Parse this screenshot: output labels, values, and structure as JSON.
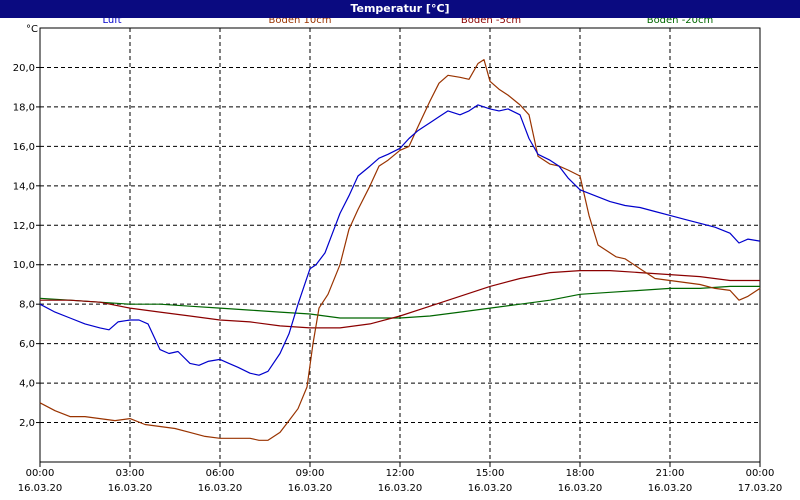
{
  "window": {
    "title": "Temperatur [°C]"
  },
  "chart_data": {
    "type": "line",
    "ylabel": "°C",
    "ylim": [
      0,
      22
    ],
    "xlim": [
      0,
      24
    ],
    "grid": true,
    "legend_placement": "top",
    "yticks": [
      {
        "v": 2,
        "label": "2,0"
      },
      {
        "v": 4,
        "label": "4,0"
      },
      {
        "v": 6,
        "label": "6,0"
      },
      {
        "v": 8,
        "label": "8,0"
      },
      {
        "v": 10,
        "label": "10,0"
      },
      {
        "v": 12,
        "label": "12,0"
      },
      {
        "v": 14,
        "label": "14,0"
      },
      {
        "v": 16,
        "label": "16,0"
      },
      {
        "v": 18,
        "label": "18,0"
      },
      {
        "v": 20,
        "label": "20,0"
      }
    ],
    "xticks": [
      {
        "v": 0,
        "time": "00:00",
        "date": "16.03.20"
      },
      {
        "v": 3,
        "time": "03:00",
        "date": "16.03.20"
      },
      {
        "v": 6,
        "time": "06:00",
        "date": "16.03.20"
      },
      {
        "v": 9,
        "time": "09:00",
        "date": "16.03.20"
      },
      {
        "v": 12,
        "time": "12:00",
        "date": "16.03.20"
      },
      {
        "v": 15,
        "time": "15:00",
        "date": "16.03.20"
      },
      {
        "v": 18,
        "time": "18:00",
        "date": "16.03.20"
      },
      {
        "v": 21,
        "time": "21:00",
        "date": "16.03.20"
      },
      {
        "v": 24,
        "time": "00:00",
        "date": "17.03.20"
      }
    ],
    "series": [
      {
        "name": "Luft",
        "color": "#0000cc",
        "x": [
          0,
          0.5,
          1,
          1.5,
          2,
          2.3,
          2.6,
          3,
          3.3,
          3.6,
          4,
          4.3,
          4.6,
          5,
          5.3,
          5.6,
          6,
          6.3,
          6.6,
          7,
          7.3,
          7.6,
          8,
          8.3,
          8.6,
          9,
          9.2,
          9.5,
          9.8,
          10,
          10.3,
          10.6,
          11,
          11.3,
          11.6,
          12,
          12.3,
          12.6,
          13,
          13.3,
          13.6,
          14,
          14.3,
          14.6,
          15,
          15.3,
          15.6,
          16,
          16.3,
          16.6,
          17,
          17.3,
          17.6,
          18,
          18.5,
          19,
          19.5,
          20,
          20.5,
          21,
          21.5,
          22,
          22.5,
          23,
          23.3,
          23.6,
          24
        ],
        "y": [
          8.0,
          7.6,
          7.3,
          7.0,
          6.8,
          6.7,
          7.1,
          7.2,
          7.2,
          7.0,
          5.7,
          5.5,
          5.6,
          5.0,
          4.9,
          5.1,
          5.2,
          5.0,
          4.8,
          4.5,
          4.4,
          4.6,
          5.5,
          6.5,
          8.0,
          9.8,
          10.0,
          10.6,
          11.8,
          12.6,
          13.5,
          14.5,
          15.0,
          15.4,
          15.6,
          15.9,
          16.4,
          16.8,
          17.2,
          17.5,
          17.8,
          17.6,
          17.8,
          18.1,
          17.9,
          17.8,
          17.9,
          17.6,
          16.4,
          15.6,
          15.3,
          15.0,
          14.4,
          13.8,
          13.5,
          13.2,
          13.0,
          12.9,
          12.7,
          12.5,
          12.3,
          12.1,
          11.9,
          11.6,
          11.1,
          11.3,
          11.2
        ]
      },
      {
        "name": "Boden 10cm",
        "color": "#993300",
        "x": [
          0,
          0.5,
          1,
          1.5,
          2,
          2.5,
          3,
          3.5,
          4,
          4.5,
          5,
          5.5,
          6,
          6.5,
          7,
          7.3,
          7.6,
          8,
          8.3,
          8.6,
          8.9,
          9.1,
          9.3,
          9.6,
          10,
          10.3,
          10.6,
          11,
          11.3,
          11.6,
          12,
          12.3,
          12.6,
          13,
          13.3,
          13.6,
          14,
          14.3,
          14.6,
          14.8,
          15,
          15.3,
          15.6,
          16,
          16.3,
          16.6,
          17,
          17.3,
          17.6,
          18,
          18.3,
          18.6,
          18.9,
          19.2,
          19.5,
          20,
          20.5,
          21,
          21.5,
          22,
          22.5,
          23,
          23.3,
          23.6,
          24
        ],
        "y": [
          3.0,
          2.6,
          2.3,
          2.3,
          2.2,
          2.1,
          2.2,
          1.9,
          1.8,
          1.7,
          1.5,
          1.3,
          1.2,
          1.2,
          1.2,
          1.1,
          1.1,
          1.5,
          2.1,
          2.7,
          3.8,
          6.0,
          7.8,
          8.5,
          10.0,
          11.8,
          12.8,
          14.0,
          15.0,
          15.3,
          15.8,
          16.0,
          17.0,
          18.3,
          19.2,
          19.6,
          19.5,
          19.4,
          20.2,
          20.4,
          19.3,
          18.9,
          18.6,
          18.1,
          17.6,
          15.5,
          15.1,
          15.0,
          14.8,
          14.5,
          12.5,
          11.0,
          10.7,
          10.4,
          10.3,
          9.8,
          9.3,
          9.2,
          9.1,
          9.0,
          8.8,
          8.7,
          8.2,
          8.4,
          8.8
        ]
      },
      {
        "name": "Boden -5cm",
        "color": "#8b0000",
        "x": [
          0,
          1,
          2,
          3,
          4,
          5,
          6,
          7,
          8,
          9,
          10,
          11,
          12,
          13,
          14,
          15,
          16,
          17,
          18,
          19,
          20,
          21,
          22,
          23,
          24
        ],
        "y": [
          8.2,
          8.2,
          8.1,
          7.8,
          7.6,
          7.4,
          7.2,
          7.1,
          6.9,
          6.8,
          6.8,
          7.0,
          7.4,
          7.9,
          8.4,
          8.9,
          9.3,
          9.6,
          9.7,
          9.7,
          9.6,
          9.5,
          9.4,
          9.2,
          9.2
        ]
      },
      {
        "name": "Boden -20cm",
        "color": "#006600",
        "x": [
          0,
          1,
          2,
          3,
          4,
          5,
          6,
          7,
          8,
          9,
          10,
          11,
          12,
          13,
          14,
          15,
          16,
          17,
          18,
          19,
          20,
          21,
          22,
          23,
          24
        ],
        "y": [
          8.3,
          8.2,
          8.1,
          8.0,
          8.0,
          7.9,
          7.8,
          7.7,
          7.6,
          7.5,
          7.3,
          7.3,
          7.3,
          7.4,
          7.6,
          7.8,
          8.0,
          8.2,
          8.5,
          8.6,
          8.7,
          8.8,
          8.8,
          8.9,
          8.9
        ]
      }
    ]
  }
}
